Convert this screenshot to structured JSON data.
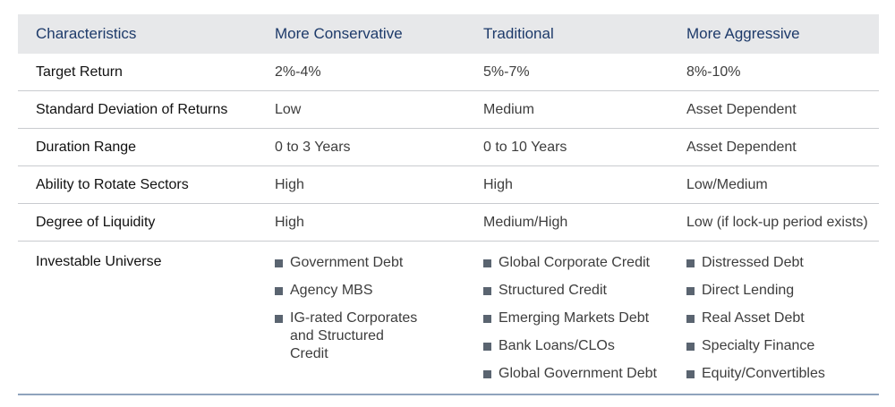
{
  "header": [
    "Characteristics",
    "More Conservative",
    "Traditional",
    "More Aggressive"
  ],
  "rows": [
    {
      "label": "Target Return",
      "values": [
        "2%-4%",
        "5%-7%",
        "8%-10%"
      ]
    },
    {
      "label": "Standard Deviation of Returns",
      "values": [
        "Low",
        "Medium",
        "Asset Dependent"
      ]
    },
    {
      "label": "Duration Range",
      "values": [
        "0 to 3 Years",
        "0 to 10 Years",
        "Asset Dependent"
      ]
    },
    {
      "label": "Ability to Rotate Sectors",
      "values": [
        "High",
        "High",
        "Low/Medium"
      ]
    },
    {
      "label": "Degree of Liquidity",
      "values": [
        "High",
        "Medium/High",
        "Low (if lock-up period exists)"
      ]
    }
  ],
  "universe": {
    "label": "Investable Universe",
    "conservative": [
      "Government Debt",
      "Agency MBS",
      "IG-rated Corporates and Structured Credit"
    ],
    "traditional": [
      "Global Corporate Credit",
      "Structured Credit",
      "Emerging Markets Debt",
      "Bank Loans/CLOs",
      "Global Government Debt"
    ],
    "aggressive": [
      "Distressed Debt",
      "Direct Lending",
      "Real Asset Debt",
      "Specialty Finance",
      "Equity/Convertibles"
    ]
  },
  "colors": {
    "header_text": "#1d3a6a",
    "header_bg": "#e7e8ea",
    "bullet": "#5a6470",
    "rule": "#8fa3bd"
  }
}
